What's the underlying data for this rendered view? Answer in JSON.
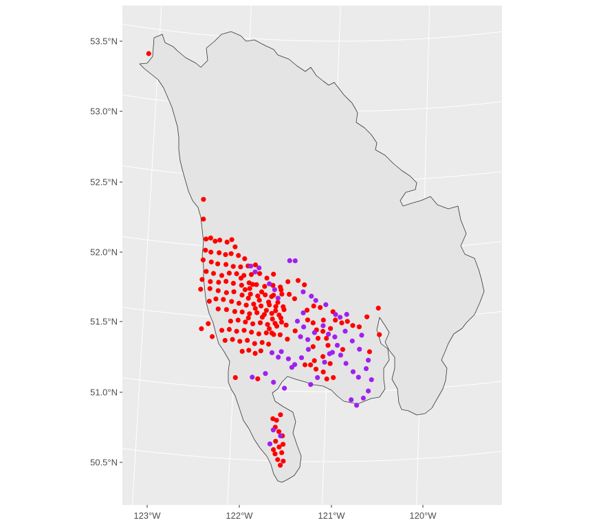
{
  "map": {
    "panel_color": "#ebebeb",
    "grid_color": "#ffffff",
    "region_fill": "#e4e4e4",
    "outline_color": "#333333",
    "y_ticks": [
      "53.5°N",
      "53.0°N",
      "52.5°N",
      "52.0°N",
      "51.5°N",
      "51.0°N",
      "50.5°N"
    ],
    "x_ticks": [
      "123°W",
      "122°W",
      "121°W",
      "120°W"
    ]
  },
  "chart_data": {
    "type": "scatter",
    "title": "",
    "xlabel": "",
    "ylabel": "",
    "projection": "lambert-conic",
    "xlim": [
      -123.3,
      -119.2
    ],
    "ylim": [
      50.3,
      53.7
    ],
    "grid": true,
    "legend": "none",
    "series": [
      {
        "color": "#ff0000",
        "points": [
          [
            -123.11,
            53.32
          ],
          [
            -122.42,
            52.33
          ],
          [
            -122.41,
            52.19
          ],
          [
            -122.37,
            52.05
          ],
          [
            -122.32,
            52.06
          ],
          [
            -122.27,
            52.04
          ],
          [
            -122.22,
            52.05
          ],
          [
            -122.14,
            52.04
          ],
          [
            -122.09,
            52.06
          ],
          [
            -122.05,
            52.01
          ],
          [
            -122.37,
            51.97
          ],
          [
            -122.31,
            51.96
          ],
          [
            -122.22,
            51.96
          ],
          [
            -122.15,
            51.95
          ],
          [
            -122.09,
            51.96
          ],
          [
            -122.01,
            51.95
          ],
          [
            -121.94,
            51.93
          ],
          [
            -122.39,
            51.9
          ],
          [
            -122.3,
            51.89
          ],
          [
            -122.23,
            51.88
          ],
          [
            -122.14,
            51.88
          ],
          [
            -122.06,
            51.87
          ],
          [
            -121.98,
            51.87
          ],
          [
            -121.9,
            51.88
          ],
          [
            -121.82,
            51.89
          ],
          [
            -122.35,
            51.82
          ],
          [
            -122.27,
            51.81
          ],
          [
            -122.18,
            51.8
          ],
          [
            -122.1,
            51.82
          ],
          [
            -122.02,
            51.82
          ],
          [
            -121.94,
            51.81
          ],
          [
            -121.86,
            51.82
          ],
          [
            -121.77,
            51.83
          ],
          [
            -121.69,
            51.8
          ],
          [
            -121.62,
            51.83
          ],
          [
            -122.39,
            51.76
          ],
          [
            -122.3,
            51.75
          ],
          [
            -122.21,
            51.75
          ],
          [
            -122.13,
            51.76
          ],
          [
            -122.05,
            51.75
          ],
          [
            -121.96,
            51.74
          ],
          [
            -121.88,
            51.76
          ],
          [
            -121.8,
            51.75
          ],
          [
            -121.71,
            51.74
          ],
          [
            -121.62,
            51.75
          ],
          [
            -121.54,
            51.74
          ],
          [
            -122.4,
            51.69
          ],
          [
            -122.3,
            51.7
          ],
          [
            -122.21,
            51.69
          ],
          [
            -122.12,
            51.68
          ],
          [
            -122.04,
            51.69
          ],
          [
            -121.95,
            51.67
          ],
          [
            -121.86,
            51.68
          ],
          [
            -121.78,
            51.67
          ],
          [
            -121.7,
            51.68
          ],
          [
            -121.61,
            51.68
          ],
          [
            -121.52,
            51.69
          ],
          [
            -121.44,
            51.69
          ],
          [
            -122.23,
            51.63
          ],
          [
            -122.15,
            51.63
          ],
          [
            -122.06,
            51.62
          ],
          [
            -121.98,
            51.61
          ],
          [
            -121.9,
            51.6
          ],
          [
            -121.82,
            51.61
          ],
          [
            -121.74,
            51.6
          ],
          [
            -121.65,
            51.61
          ],
          [
            -121.58,
            51.6
          ],
          [
            -121.5,
            51.6
          ],
          [
            -122.2,
            51.56
          ],
          [
            -122.11,
            51.56
          ],
          [
            -122.02,
            51.55
          ],
          [
            -121.94,
            51.55
          ],
          [
            -121.86,
            51.54
          ],
          [
            -121.78,
            51.55
          ],
          [
            -121.7,
            51.54
          ],
          [
            -121.62,
            51.55
          ],
          [
            -121.54,
            51.54
          ],
          [
            -122.06,
            51.48
          ],
          [
            -121.98,
            51.49
          ],
          [
            -121.9,
            51.48
          ],
          [
            -121.82,
            51.47
          ],
          [
            -121.74,
            51.48
          ],
          [
            -121.66,
            51.47
          ],
          [
            -121.58,
            51.48
          ],
          [
            -121.51,
            51.49
          ],
          [
            -122.15,
            51.41
          ],
          [
            -122.07,
            51.42
          ],
          [
            -121.99,
            51.41
          ],
          [
            -121.91,
            51.42
          ],
          [
            -121.83,
            51.41
          ],
          [
            -121.75,
            51.4
          ],
          [
            -121.67,
            51.41
          ],
          [
            -121.59,
            51.4
          ],
          [
            -121.52,
            51.4
          ],
          [
            -122.03,
            51.35
          ],
          [
            -121.95,
            51.34
          ],
          [
            -121.87,
            51.35
          ],
          [
            -121.79,
            51.33
          ],
          [
            -121.71,
            51.34
          ],
          [
            -121.64,
            51.33
          ],
          [
            -122.11,
            51.34
          ],
          [
            -121.97,
            51.79
          ],
          [
            -121.87,
            51.72
          ],
          [
            -121.76,
            51.64
          ],
          [
            -121.68,
            51.57
          ],
          [
            -121.61,
            51.51
          ],
          [
            -121.56,
            51.46
          ],
          [
            -121.64,
            51.44
          ],
          [
            -121.72,
            51.52
          ],
          [
            -121.8,
            51.58
          ],
          [
            -121.88,
            51.65
          ],
          [
            -121.92,
            51.71
          ],
          [
            -121.84,
            51.75
          ],
          [
            -121.74,
            51.7
          ],
          [
            -121.66,
            51.63
          ],
          [
            -121.58,
            51.57
          ],
          [
            -121.52,
            51.52
          ],
          [
            -121.46,
            51.47
          ],
          [
            -121.49,
            51.58
          ],
          [
            -121.56,
            51.63
          ],
          [
            -121.63,
            51.67
          ],
          [
            -122.3,
            51.61
          ],
          [
            -122.3,
            51.45
          ],
          [
            -122.25,
            51.36
          ],
          [
            -121.92,
            51.27
          ],
          [
            -121.85,
            51.28
          ],
          [
            -121.78,
            51.26
          ],
          [
            -121.72,
            51.28
          ],
          [
            -121.74,
            51.08
          ],
          [
            -121.53,
            51.72
          ],
          [
            -121.46,
            51.78
          ],
          [
            -121.35,
            51.79
          ],
          [
            -121.24,
            51.58
          ],
          [
            -121.17,
            51.61
          ],
          [
            -121.1,
            51.6
          ],
          [
            -121.23,
            51.51
          ],
          [
            -121.17,
            51.49
          ],
          [
            -121.13,
            51.44
          ],
          [
            -121.06,
            51.43
          ],
          [
            -121.02,
            51.38
          ],
          [
            -120.98,
            51.45
          ],
          [
            -120.93,
            51.51
          ],
          [
            -120.86,
            51.49
          ],
          [
            -120.8,
            51.5
          ],
          [
            -120.74,
            51.47
          ],
          [
            -120.67,
            51.46
          ],
          [
            -120.59,
            51.53
          ],
          [
            -120.45,
            51.4
          ],
          [
            -120.55,
            51.28
          ],
          [
            -121.0,
            51.33
          ],
          [
            -121.05,
            51.25
          ],
          [
            -121.04,
            51.14
          ],
          [
            -121.0,
            51.09
          ],
          [
            -120.93,
            51.1
          ],
          [
            -121.12,
            51.16
          ],
          [
            -121.18,
            51.19
          ],
          [
            -121.24,
            51.19
          ],
          [
            -121.16,
            51.32
          ],
          [
            -121.36,
            51.43
          ],
          [
            -121.44,
            51.37
          ],
          [
            -121.11,
            51.38
          ],
          [
            -121.06,
            51.51
          ],
          [
            -120.84,
            51.3
          ],
          [
            -120.97,
            51.2
          ],
          [
            -120.96,
            51.57
          ],
          [
            -121.48,
            50.83
          ],
          [
            -121.52,
            50.79
          ],
          [
            -121.56,
            50.8
          ],
          [
            -121.53,
            50.74
          ],
          [
            -121.49,
            50.71
          ],
          [
            -121.45,
            50.68
          ],
          [
            -121.52,
            50.64
          ],
          [
            -121.48,
            50.6
          ],
          [
            -121.45,
            50.56
          ],
          [
            -121.52,
            50.55
          ],
          [
            -121.49,
            50.51
          ],
          [
            -121.43,
            50.5
          ],
          [
            -121.46,
            50.47
          ],
          [
            -121.54,
            50.58
          ],
          [
            -121.44,
            50.62
          ],
          [
            -122.37,
            51.41
          ],
          [
            -121.98,
            51.08
          ],
          [
            -121.14,
            51.22
          ],
          [
            -121.38,
            51.66
          ],
          [
            -121.87,
            51.51
          ],
          [
            -121.61,
            51.41
          ],
          [
            -121.28,
            51.76
          ],
          [
            -120.47,
            51.59
          ]
        ]
      },
      {
        "color": "#a020f0",
        "points": [
          [
            -121.87,
            51.88
          ],
          [
            -121.82,
            51.84
          ],
          [
            -121.78,
            51.87
          ],
          [
            -121.45,
            51.93
          ],
          [
            -121.39,
            51.93
          ],
          [
            -121.66,
            51.76
          ],
          [
            -121.6,
            51.72
          ],
          [
            -121.56,
            51.66
          ],
          [
            -121.29,
            51.71
          ],
          [
            -121.2,
            51.68
          ],
          [
            -121.15,
            51.65
          ],
          [
            -121.04,
            51.62
          ],
          [
            -120.93,
            51.55
          ],
          [
            -120.88,
            51.53
          ],
          [
            -120.81,
            51.55
          ],
          [
            -121.34,
            51.5
          ],
          [
            -121.27,
            51.46
          ],
          [
            -121.3,
            51.39
          ],
          [
            -121.22,
            51.37
          ],
          [
            -121.15,
            51.42
          ],
          [
            -121.06,
            51.47
          ],
          [
            -121.0,
            51.41
          ],
          [
            -120.93,
            51.39
          ],
          [
            -120.9,
            51.33
          ],
          [
            -120.86,
            51.26
          ],
          [
            -120.8,
            51.2
          ],
          [
            -120.72,
            51.14
          ],
          [
            -120.66,
            51.1
          ],
          [
            -120.58,
            51.16
          ],
          [
            -120.56,
            51.22
          ],
          [
            -120.52,
            51.08
          ],
          [
            -120.55,
            51.0
          ],
          [
            -120.6,
            50.95
          ],
          [
            -120.67,
            50.9
          ],
          [
            -120.73,
            50.94
          ],
          [
            -121.6,
            51.27
          ],
          [
            -121.53,
            51.24
          ],
          [
            -121.42,
            51.23
          ],
          [
            -121.35,
            51.19
          ],
          [
            -121.28,
            51.24
          ],
          [
            -121.66,
            51.12
          ],
          [
            -121.57,
            51.06
          ],
          [
            -121.45,
            51.02
          ],
          [
            -121.38,
            51.17
          ],
          [
            -121.17,
            51.05
          ],
          [
            -121.1,
            51.1
          ],
          [
            -121.03,
            51.21
          ],
          [
            -120.95,
            51.28
          ],
          [
            -120.74,
            51.36
          ],
          [
            -120.66,
            51.3
          ],
          [
            -120.64,
            51.4
          ],
          [
            -121.55,
            50.72
          ],
          [
            -121.47,
            50.68
          ],
          [
            -121.58,
            50.62
          ],
          [
            -121.5,
            51.28
          ],
          [
            -121.21,
            51.3
          ],
          [
            -121.28,
            51.56
          ],
          [
            -121.8,
            51.09
          ],
          [
            -120.98,
            51.27
          ],
          [
            -120.82,
            51.43
          ]
        ]
      }
    ]
  }
}
